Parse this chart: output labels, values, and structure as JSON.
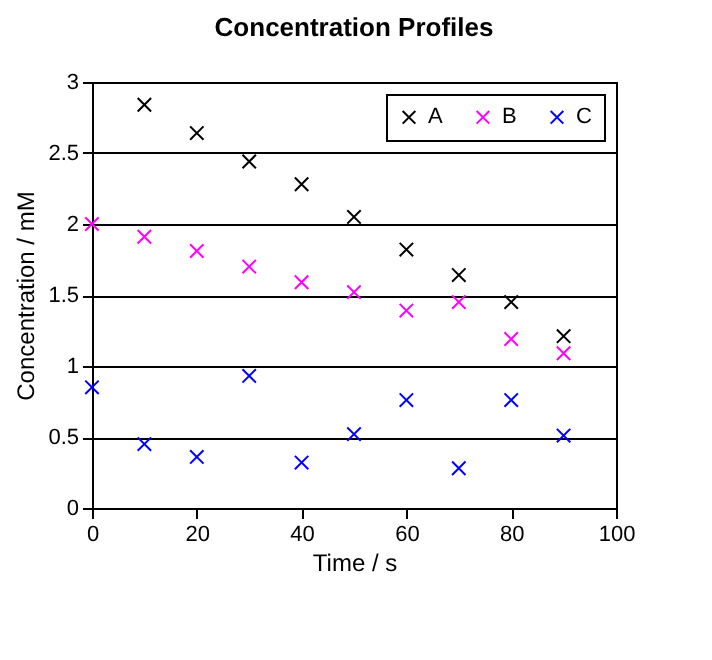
{
  "chart_data": {
    "type": "scatter",
    "title": "Concentration Profiles",
    "xlabel": "Time / s",
    "ylabel": "Concentration / mM",
    "xlim": [
      0,
      100
    ],
    "xticks": [
      0,
      20,
      40,
      60,
      80,
      100
    ],
    "ylim": [
      0,
      3
    ],
    "yticks": [
      0,
      0.5,
      1,
      1.5,
      2,
      2.5,
      3
    ],
    "grid": "y",
    "legend": "top right",
    "marker": "cross",
    "series": [
      {
        "name": "A",
        "color": "#000000",
        "x": [
          10,
          20,
          30,
          40,
          50,
          60,
          70,
          80,
          90
        ],
        "values": [
          2.84,
          2.64,
          2.44,
          2.28,
          2.05,
          1.82,
          1.64,
          1.45,
          1.21
        ]
      },
      {
        "name": "B",
        "color": "#ff00ff",
        "x": [
          0,
          10,
          20,
          30,
          40,
          50,
          60,
          70,
          80,
          90
        ],
        "values": [
          2.0,
          1.91,
          1.81,
          1.7,
          1.59,
          1.52,
          1.39,
          1.45,
          1.19,
          1.09
        ]
      },
      {
        "name": "C",
        "color": "#0000ff",
        "x": [
          0,
          10,
          20,
          30,
          40,
          50,
          60,
          70,
          80,
          90
        ],
        "values": [
          0.85,
          0.45,
          0.36,
          0.93,
          0.32,
          0.52,
          0.76,
          0.28,
          0.76,
          0.51
        ]
      }
    ]
  }
}
